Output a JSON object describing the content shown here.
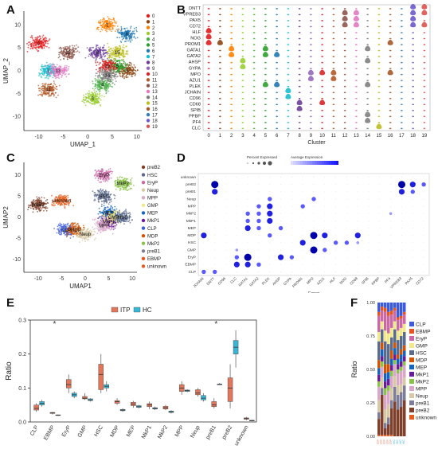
{
  "panel_labels": {
    "a": "A",
    "b": "B",
    "c": "C",
    "d": "D",
    "e": "E",
    "f": "F"
  },
  "colors": {
    "clusters": [
      "#e41a1c",
      "#8B4513",
      "#ff7f00",
      "#9acd32",
      "#4daf4a",
      "#2ca02c",
      "#1f77b4",
      "#17becf",
      "#6a3d9a",
      "#9467bd",
      "#d62728",
      "#b15928",
      "#8c564b",
      "#e377c2",
      "#7f7f7f",
      "#bcbd22",
      "#a65628",
      "#377eb8",
      "#6a5acd",
      "#d9534f"
    ],
    "celltypes": {
      "CLP": "#3b5bdb",
      "EBMP": "#e8541f",
      "EryP": "#c96aa6",
      "GMP": "#f2e88a",
      "HSC": "#5b6b8c",
      "MDP": "#d35400",
      "MEP": "#1565c0",
      "MkP1": "#6a1b9a",
      "MkP2": "#8bc34a",
      "MPP": "#d9a7c7",
      "Neup": "#d7c9a6",
      "preB1": "#7d7d99",
      "preB2": "#7f3f2a",
      "unknown": "#e65c1c"
    },
    "itp": "#e2765a",
    "hc": "#35b6d6"
  },
  "chart_data": [
    {
      "id": "A",
      "type": "scatter",
      "xlabel": "UMAP_1",
      "ylabel": "UMAP_2",
      "xticks": [
        "-10",
        "-5",
        "0",
        "5",
        "10"
      ],
      "yticks": [
        "-10",
        "-5",
        "0",
        "5",
        "10"
      ],
      "legend": [
        "0",
        "1",
        "2",
        "3",
        "4",
        "5",
        "6",
        "7",
        "8",
        "9",
        "10",
        "11",
        "12",
        "13",
        "14",
        "15",
        "16",
        "17",
        "18",
        "19"
      ],
      "labels": [
        {
          "t": "0",
          "x": -10,
          "y": 6
        },
        {
          "t": "1",
          "x": 8,
          "y": 0
        },
        {
          "t": "2",
          "x": 4,
          "y": 10
        },
        {
          "t": "3",
          "x": 1,
          "y": -6
        },
        {
          "t": "4",
          "x": 3,
          "y": -3
        },
        {
          "t": "5",
          "x": 6,
          "y": 1
        },
        {
          "t": "6",
          "x": 8,
          "y": 8
        },
        {
          "t": "7",
          "x": -8,
          "y": 0
        },
        {
          "t": "8",
          "x": 2,
          "y": 4
        },
        {
          "t": "10",
          "x": 4,
          "y": 1
        },
        {
          "t": "11",
          "x": -8,
          "y": -4
        },
        {
          "t": "12",
          "x": -4,
          "y": 4
        },
        {
          "t": "13",
          "x": -6,
          "y": 0
        },
        {
          "t": "14",
          "x": 4,
          "y": -1
        },
        {
          "t": "15",
          "x": 6,
          "y": 4
        }
      ]
    },
    {
      "id": "B",
      "type": "violin",
      "genes": [
        "DNTT",
        "VPREB3",
        "PAX5",
        "CD72",
        "HLF",
        "NOG",
        "PROM1",
        "GATA1",
        "GATA2",
        "AHSP",
        "GYPA",
        "MPO",
        "AZU1",
        "PLEK",
        "JCHAIN",
        "CD96",
        "CD68",
        "SPIB",
        "PPBP",
        "PF4",
        "CLC"
      ],
      "clusters": [
        "0",
        "1",
        "2",
        "3",
        "4",
        "5",
        "6",
        "7",
        "8",
        "9",
        "10",
        "11",
        "12",
        "13",
        "14",
        "15",
        "16",
        "17",
        "18",
        "19"
      ],
      "xlabel": "Cluster"
    },
    {
      "id": "C",
      "type": "scatter",
      "xlabel": "UMAP1",
      "ylabel": "UMAP2",
      "xticks": [
        "-10",
        "-5",
        "0",
        "5",
        "10"
      ],
      "yticks": [
        "-10",
        "-5",
        "0",
        "5",
        "10"
      ],
      "legend": [
        "preB2",
        "HSC",
        "EryP",
        "Neup",
        "MPP",
        "GMP",
        "MEP",
        "MkP1",
        "CLP",
        "MDP",
        "MkP2",
        "preB1",
        "EBMP",
        "unknown"
      ],
      "labels": [
        {
          "t": "preB2",
          "x": -10,
          "y": 3
        },
        {
          "t": "unknown",
          "x": -5,
          "y": 4
        },
        {
          "t": "EryP",
          "x": 4,
          "y": 10
        },
        {
          "t": "MkP2",
          "x": 8,
          "y": 8
        },
        {
          "t": "HSC",
          "x": 4,
          "y": 5
        },
        {
          "t": "MEP",
          "x": 5,
          "y": 1
        },
        {
          "t": "MkP1",
          "x": 5,
          "y": -1
        },
        {
          "t": "GMP",
          "x": 6,
          "y": 0
        },
        {
          "t": "HSC",
          "x": 8,
          "y": 0
        },
        {
          "t": "CLP",
          "x": -4,
          "y": -3
        },
        {
          "t": "MDP",
          "x": -2,
          "y": -3
        },
        {
          "t": "Neup",
          "x": 0,
          "y": -4
        },
        {
          "t": "MPP",
          "x": 4,
          "y": -2
        }
      ]
    },
    {
      "id": "D",
      "type": "dotplot",
      "rows": [
        "unknown",
        "preB2",
        "preB1",
        "Neup",
        "MPP",
        "MkP2",
        "MkP1",
        "MEP",
        "MDP",
        "HSC",
        "GMP",
        "EryP",
        "EBMP",
        "CLP"
      ],
      "cols": [
        "JCHAIN",
        "DNTT",
        "CD96",
        "CLC",
        "GATA1",
        "GATA2",
        "PLEK",
        "AHSP",
        "GYPA",
        "PROM1",
        "MPO",
        "AZU1",
        "HLF",
        "NOG",
        "CD68",
        "SPIB",
        "PPBP",
        "PF4",
        "VPREB3",
        "PAX5",
        "CD72"
      ],
      "xlabel": "Genes",
      "legend_title_a": "Percent Expressed",
      "legend_title_b": "Average Expression",
      "dots": [
        {
          "r": "preB2",
          "c": "DNTT",
          "s": 4
        },
        {
          "r": "preB2",
          "c": "VPREB3",
          "s": 4
        },
        {
          "r": "preB2",
          "c": "PAX5",
          "s": 3
        },
        {
          "r": "preB2",
          "c": "CD72",
          "s": 2
        },
        {
          "r": "preB1",
          "c": "DNTT",
          "s": 3
        },
        {
          "r": "preB1",
          "c": "VPREB3",
          "s": 3
        },
        {
          "r": "preB1",
          "c": "PAX5",
          "s": 2
        },
        {
          "r": "Neup",
          "c": "PLEK",
          "s": 2
        },
        {
          "r": "Neup",
          "c": "MPO",
          "s": 2
        },
        {
          "r": "MPP",
          "c": "PLEK",
          "s": 3
        },
        {
          "r": "MPP",
          "c": "GATA2",
          "s": 2
        },
        {
          "r": "MPP",
          "c": "PROM1",
          "s": 2
        },
        {
          "r": "MkP2",
          "c": "GATA1",
          "s": 2
        },
        {
          "r": "MkP2",
          "c": "GATA2",
          "s": 2
        },
        {
          "r": "MkP2",
          "c": "PLEK",
          "s": 3
        },
        {
          "r": "MkP2",
          "c": "PF4",
          "s": 1
        },
        {
          "r": "MkP1",
          "c": "GATA1",
          "s": 2
        },
        {
          "r": "MkP1",
          "c": "GATA2",
          "s": 2
        },
        {
          "r": "MkP1",
          "c": "PLEK",
          "s": 3
        },
        {
          "r": "MEP",
          "c": "GATA1",
          "s": 3
        },
        {
          "r": "MEP",
          "c": "GATA2",
          "s": 2
        },
        {
          "r": "MEP",
          "c": "AHSP",
          "s": 2
        },
        {
          "r": "MDP",
          "c": "JCHAIN",
          "s": 3
        },
        {
          "r": "MDP",
          "c": "PLEK",
          "s": 2
        },
        {
          "r": "MDP",
          "c": "MPO",
          "s": 4
        },
        {
          "r": "MDP",
          "c": "AZU1",
          "s": 3
        },
        {
          "r": "MDP",
          "c": "CD68",
          "s": 3
        },
        {
          "r": "HSC",
          "c": "PROM1",
          "s": 3
        },
        {
          "r": "HSC",
          "c": "HLF",
          "s": 2
        },
        {
          "r": "HSC",
          "c": "NOG",
          "s": 2
        },
        {
          "r": "HSC",
          "c": "CD68",
          "s": 1
        },
        {
          "r": "GMP",
          "c": "MPO",
          "s": 4
        },
        {
          "r": "GMP",
          "c": "AZU1",
          "s": 2
        },
        {
          "r": "GMP",
          "c": "CLC",
          "s": 1
        },
        {
          "r": "EryP",
          "c": "GATA1",
          "s": 4
        },
        {
          "r": "EryP",
          "c": "AHSP",
          "s": 3
        },
        {
          "r": "EryP",
          "c": "GYPA",
          "s": 2
        },
        {
          "r": "EryP",
          "c": "CLC",
          "s": 2
        },
        {
          "r": "EBMP",
          "c": "GATA1",
          "s": 3
        },
        {
          "r": "EBMP",
          "c": "GATA2",
          "s": 2
        },
        {
          "r": "EBMP",
          "c": "CLC",
          "s": 3
        },
        {
          "r": "CLP",
          "c": "JCHAIN",
          "s": 2
        },
        {
          "r": "CLP",
          "c": "DNTT",
          "s": 2
        }
      ]
    },
    {
      "id": "E",
      "type": "box",
      "ylabel": "Ratio",
      "ylim": [
        0,
        0.3
      ],
      "yticks": [
        "0.0",
        "0.1",
        "0.2",
        "0.3"
      ],
      "legend": [
        "ITP",
        "HC"
      ],
      "categories": [
        "CLP",
        "EBMP",
        "EryP",
        "GMP",
        "HSC",
        "MDP",
        "MEP",
        "MkP1",
        "MkP2",
        "MPP",
        "Neup",
        "preB1",
        "preB2",
        "unknown"
      ],
      "significant": [
        "EBMP",
        "preB1"
      ],
      "sig_marker": "*",
      "series": [
        {
          "name": "ITP",
          "boxes": [
            [
              0.03,
              0.035,
              0.04,
              0.05,
              0.055
            ],
            [
              0.022,
              0.025,
              0.027,
              0.028,
              0.03
            ],
            [
              0.085,
              0.1,
              0.11,
              0.125,
              0.14
            ],
            [
              0.065,
              0.068,
              0.07,
              0.075,
              0.085
            ],
            [
              0.085,
              0.095,
              0.14,
              0.17,
              0.2
            ],
            [
              0.05,
              0.055,
              0.06,
              0.063,
              0.07
            ],
            [
              0.042,
              0.048,
              0.053,
              0.058,
              0.062
            ],
            [
              0.038,
              0.045,
              0.05,
              0.054,
              0.06
            ],
            [
              0.035,
              0.038,
              0.042,
              0.046,
              0.05
            ],
            [
              0.08,
              0.09,
              0.1,
              0.11,
              0.12
            ],
            [
              0.075,
              0.08,
              0.085,
              0.095,
              0.1
            ],
            [
              0.04,
              0.045,
              0.05,
              0.06,
              0.07
            ],
            [
              0.04,
              0.06,
              0.1,
              0.13,
              0.17
            ],
            [
              0.005,
              0.008,
              0.01,
              0.012,
              0.015
            ]
          ]
        },
        {
          "name": "HC",
          "boxes": [
            [
              0.045,
              0.05,
              0.055,
              0.06,
              0.065
            ],
            [
              0.018,
              0.019,
              0.02,
              0.021,
              0.022
            ],
            [
              0.07,
              0.075,
              0.08,
              0.085,
              0.09
            ],
            [
              0.06,
              0.063,
              0.065,
              0.068,
              0.07
            ],
            [
              0.09,
              0.1,
              0.105,
              0.11,
              0.12
            ],
            [
              0.03,
              0.033,
              0.035,
              0.037,
              0.04
            ],
            [
              0.04,
              0.043,
              0.045,
              0.048,
              0.05
            ],
            [
              0.035,
              0.038,
              0.04,
              0.042,
              0.045
            ],
            [
              0.025,
              0.028,
              0.03,
              0.032,
              0.035
            ],
            [
              0.088,
              0.09,
              0.092,
              0.094,
              0.096
            ],
            [
              0.06,
              0.065,
              0.07,
              0.078,
              0.085
            ],
            [
              0.11,
              0.11,
              0.11,
              0.112,
              0.115
            ],
            [
              0.16,
              0.2,
              0.22,
              0.24,
              0.27
            ],
            [
              0.002,
              0.003,
              0.004,
              0.005,
              0.006
            ]
          ]
        }
      ]
    },
    {
      "id": "F",
      "type": "bar",
      "ylabel": "Ratio",
      "ylim": [
        0,
        1
      ],
      "yticks": [
        "0.00",
        "0.25",
        "0.50",
        "0.75",
        "1.00"
      ],
      "legend": [
        "CLP",
        "EBMP",
        "EryP",
        "GMP",
        "HSC",
        "MDP",
        "MEP",
        "MkP1",
        "MkP2",
        "MPP",
        "Neup",
        "preB1",
        "preB2",
        "unknown"
      ],
      "stack_order": [
        "unknown",
        "preB2",
        "preB1",
        "Neup",
        "MPP",
        "MkP2",
        "MkP1",
        "MEP",
        "MDP",
        "HSC",
        "GMP",
        "EryP",
        "EBMP",
        "CLP"
      ],
      "samples": [
        {
          "group": "ITP",
          "values": {
            "unknown": 0.01,
            "preB2": 0.12,
            "preB1": 0.05,
            "Neup": 0.09,
            "MPP": 0.1,
            "MkP2": 0.04,
            "MkP1": 0.05,
            "MEP": 0.05,
            "MDP": 0.06,
            "HSC": 0.14,
            "GMP": 0.07,
            "EryP": 0.12,
            "EBMP": 0.03,
            "CLP": 0.07
          }
        },
        {
          "group": "ITP",
          "values": {
            "unknown": 0.01,
            "preB2": 0.3,
            "preB1": 0.05,
            "Neup": 0.08,
            "MPP": 0.08,
            "MkP2": 0.04,
            "MkP1": 0.04,
            "MEP": 0.05,
            "MDP": 0.05,
            "HSC": 0.1,
            "GMP": 0.06,
            "EryP": 0.08,
            "EBMP": 0.03,
            "CLP": 0.03
          }
        },
        {
          "group": "ITP",
          "values": {
            "unknown": 0.01,
            "preB2": 0.05,
            "preB1": 0.04,
            "Neup": 0.1,
            "MPP": 0.11,
            "MkP2": 0.05,
            "MkP1": 0.05,
            "MEP": 0.06,
            "MDP": 0.07,
            "HSC": 0.17,
            "GMP": 0.08,
            "EryP": 0.14,
            "EBMP": 0.03,
            "CLP": 0.04
          }
        },
        {
          "group": "ITP",
          "values": {
            "unknown": 0.01,
            "preB2": 0.08,
            "preB1": 0.05,
            "Neup": 0.1,
            "MPP": 0.1,
            "MkP2": 0.04,
            "MkP1": 0.05,
            "MEP": 0.05,
            "MDP": 0.06,
            "HSC": 0.15,
            "GMP": 0.08,
            "EryP": 0.13,
            "EBMP": 0.03,
            "CLP": 0.07
          }
        },
        {
          "group": "ITP",
          "values": {
            "unknown": 0.01,
            "preB2": 0.2,
            "preB1": 0.06,
            "Neup": 0.09,
            "MPP": 0.09,
            "MkP2": 0.04,
            "MkP1": 0.04,
            "MEP": 0.05,
            "MDP": 0.06,
            "HSC": 0.1,
            "GMP": 0.07,
            "EryP": 0.1,
            "EBMP": 0.03,
            "CLP": 0.06
          }
        },
        {
          "group": "HC",
          "values": {
            "unknown": 0.0,
            "preB2": 0.26,
            "preB1": 0.11,
            "Neup": 0.08,
            "MPP": 0.09,
            "MkP2": 0.03,
            "MkP1": 0.04,
            "MEP": 0.05,
            "MDP": 0.04,
            "HSC": 0.1,
            "GMP": 0.06,
            "EryP": 0.08,
            "EBMP": 0.02,
            "CLP": 0.04
          }
        },
        {
          "group": "HC",
          "values": {
            "unknown": 0.0,
            "preB2": 0.2,
            "preB1": 0.11,
            "Neup": 0.07,
            "MPP": 0.09,
            "MkP2": 0.03,
            "MkP1": 0.04,
            "MEP": 0.04,
            "MDP": 0.03,
            "HSC": 0.11,
            "GMP": 0.07,
            "EryP": 0.08,
            "EBMP": 0.02,
            "CLP": 0.11
          }
        },
        {
          "group": "HC",
          "values": {
            "unknown": 0.0,
            "preB2": 0.22,
            "preB1": 0.11,
            "Neup": 0.06,
            "MPP": 0.1,
            "MkP2": 0.03,
            "MkP1": 0.04,
            "MEP": 0.05,
            "MDP": 0.04,
            "HSC": 0.1,
            "GMP": 0.06,
            "EryP": 0.07,
            "EBMP": 0.02,
            "CLP": 0.1
          }
        },
        {
          "group": "HC",
          "values": {
            "unknown": 0.0,
            "preB2": 0.27,
            "preB1": 0.11,
            "Neup": 0.06,
            "MPP": 0.09,
            "MkP2": 0.03,
            "MkP1": 0.04,
            "MEP": 0.04,
            "MDP": 0.04,
            "HSC": 0.1,
            "GMP": 0.06,
            "EryP": 0.07,
            "EBMP": 0.02,
            "CLP": 0.07
          }
        }
      ]
    }
  ]
}
